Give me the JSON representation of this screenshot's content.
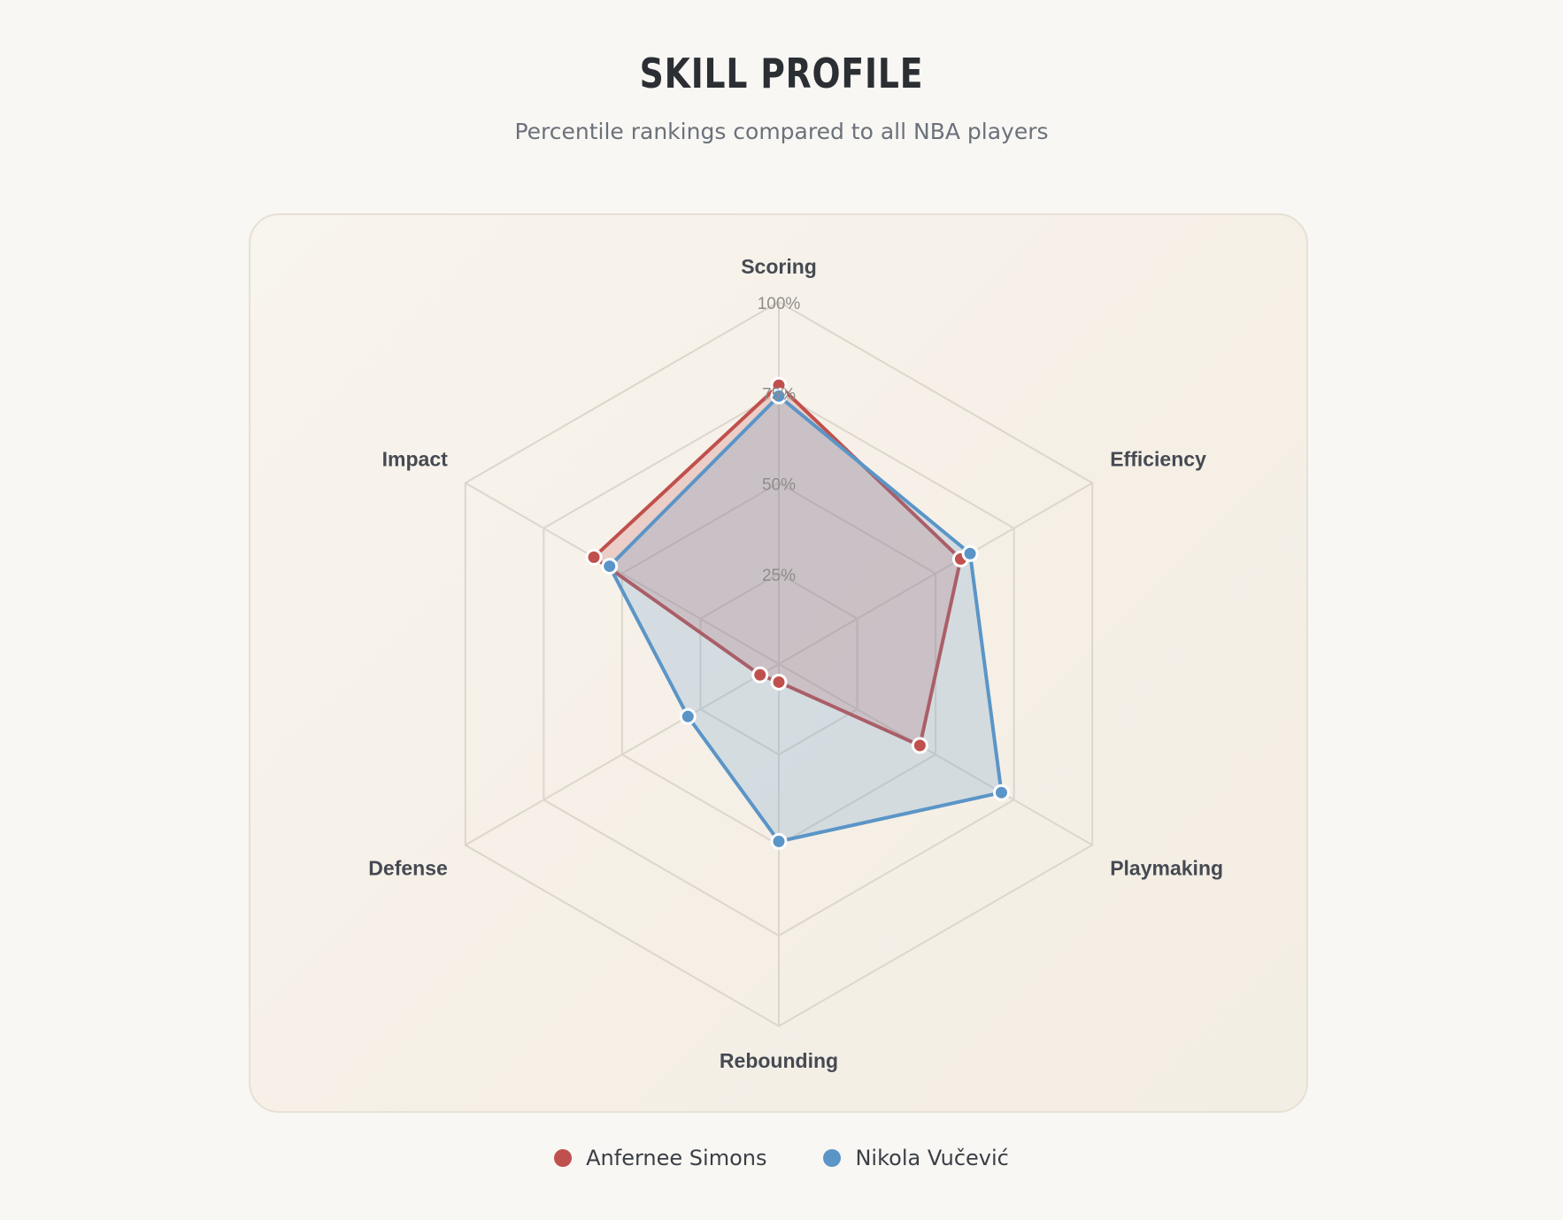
{
  "chart_data": {
    "type": "radar",
    "title": "SKILL PROFILE",
    "subtitle": "Percentile rankings compared to all NBA players",
    "axes": [
      "Scoring",
      "Efficiency",
      "Playmaking",
      "Rebounding",
      "Defense",
      "Impact"
    ],
    "range": [
      0,
      100
    ],
    "tick_values": [
      25,
      50,
      75,
      100
    ],
    "tick_labels": [
      "25%",
      "50%",
      "75%",
      "100%"
    ],
    "series": [
      {
        "name": "Anfernee Simons",
        "color": "#c0504d",
        "values": [
          77,
          58,
          45,
          5,
          6,
          59
        ]
      },
      {
        "name": "Nikola Vučević",
        "color": "#5b95c7",
        "values": [
          74,
          61,
          71,
          49,
          29,
          54
        ]
      }
    ],
    "legend_position": "bottom-center",
    "grid": true
  }
}
